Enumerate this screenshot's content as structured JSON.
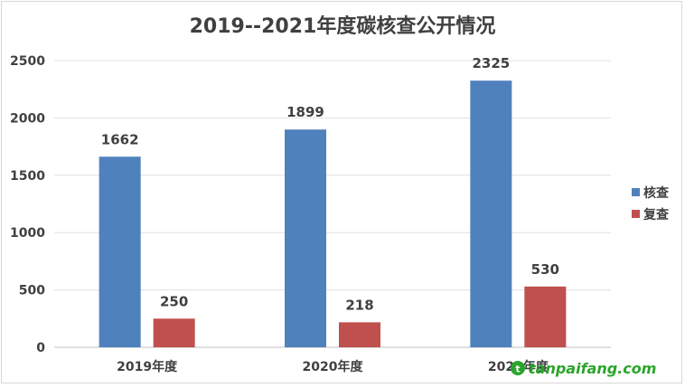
{
  "chart_data": {
    "type": "bar",
    "title": "2019--2021年度碳核查公开情况",
    "xlabel": "",
    "ylabel": "",
    "categories": [
      "2019年度",
      "2020年度",
      "2021年度"
    ],
    "series": [
      {
        "name": "核查",
        "values": [
          1662,
          1899,
          2325
        ],
        "color": "#4f81bd"
      },
      {
        "name": "复查",
        "values": [
          250,
          218,
          530
        ],
        "color": "#c0504d"
      }
    ],
    "ylim": [
      0,
      2500
    ],
    "yticks": [
      0,
      500,
      1000,
      1500,
      2000,
      2500
    ],
    "grid": true,
    "legend_position": "right"
  },
  "watermark": {
    "text": "tanpaifang.com",
    "icon": "tanpaifang-logo-icon"
  }
}
